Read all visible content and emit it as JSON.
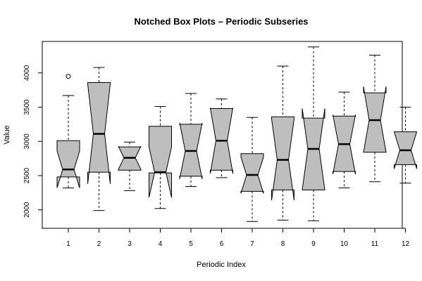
{
  "chart_data": {
    "type": "boxplot",
    "notched": true,
    "title": "Notched Box Plots – Periodic Subseries",
    "xlabel": "Periodic Index",
    "ylabel": "Value",
    "ylim": [
      1730,
      4460
    ],
    "yticks": [
      2000,
      2500,
      3000,
      3500,
      4000
    ],
    "categories": [
      "1",
      "2",
      "3",
      "4",
      "5",
      "6",
      "7",
      "8",
      "9",
      "10",
      "11",
      "12"
    ],
    "boxes": [
      {
        "label": "1",
        "min": 2320,
        "q1": 2480,
        "median": 2590,
        "q3": 3010,
        "max": 3670,
        "notch_low": 2320,
        "notch_high": 2860,
        "outliers": [
          3950
        ]
      },
      {
        "label": "2",
        "min": 1990,
        "q1": 2550,
        "median": 3110,
        "q3": 3860,
        "max": 4080,
        "notch_low": 2380,
        "notch_high": 3840,
        "outliers": []
      },
      {
        "label": "3",
        "min": 2280,
        "q1": 2580,
        "median": 2760,
        "q3": 2920,
        "max": 2990,
        "notch_low": 2590,
        "notch_high": 2930,
        "outliers": []
      },
      {
        "label": "4",
        "min": 2020,
        "q1": 2540,
        "median": 2550,
        "q3": 3220,
        "max": 3510,
        "notch_low": 2180,
        "notch_high": 2920,
        "outliers": []
      },
      {
        "label": "5",
        "min": 2340,
        "q1": 2490,
        "median": 2860,
        "q3": 3250,
        "max": 3700,
        "notch_low": 2450,
        "notch_high": 3270,
        "outliers": []
      },
      {
        "label": "6",
        "min": 2470,
        "q1": 2580,
        "median": 3010,
        "q3": 3480,
        "max": 3620,
        "notch_low": 2530,
        "notch_high": 3490,
        "outliers": []
      },
      {
        "label": "7",
        "min": 1830,
        "q1": 2270,
        "median": 2510,
        "q3": 2820,
        "max": 3350,
        "notch_low": 2240,
        "notch_high": 2770,
        "outliers": []
      },
      {
        "label": "8",
        "min": 1850,
        "q1": 2290,
        "median": 2730,
        "q3": 3360,
        "max": 4100,
        "notch_low": 2140,
        "notch_high": 3330,
        "outliers": []
      },
      {
        "label": "9",
        "min": 1840,
        "q1": 2290,
        "median": 2890,
        "q3": 3340,
        "max": 4380,
        "notch_low": 2290,
        "notch_high": 3480,
        "outliers": []
      },
      {
        "label": "10",
        "min": 2320,
        "q1": 2560,
        "median": 2960,
        "q3": 3370,
        "max": 3720,
        "notch_low": 2520,
        "notch_high": 3390,
        "outliers": []
      },
      {
        "label": "11",
        "min": 2410,
        "q1": 2840,
        "median": 3310,
        "q3": 3710,
        "max": 4260,
        "notch_low": 2840,
        "notch_high": 3800,
        "outliers": []
      },
      {
        "label": "12",
        "min": 2390,
        "q1": 2660,
        "median": 2870,
        "q3": 3140,
        "max": 3500,
        "notch_low": 2600,
        "notch_high": 3140,
        "outliers": []
      }
    ],
    "colors": {
      "box_fill": "#bebebe",
      "stroke": "#000000",
      "background": "#ffffff"
    },
    "grid": false,
    "legend": "none"
  }
}
